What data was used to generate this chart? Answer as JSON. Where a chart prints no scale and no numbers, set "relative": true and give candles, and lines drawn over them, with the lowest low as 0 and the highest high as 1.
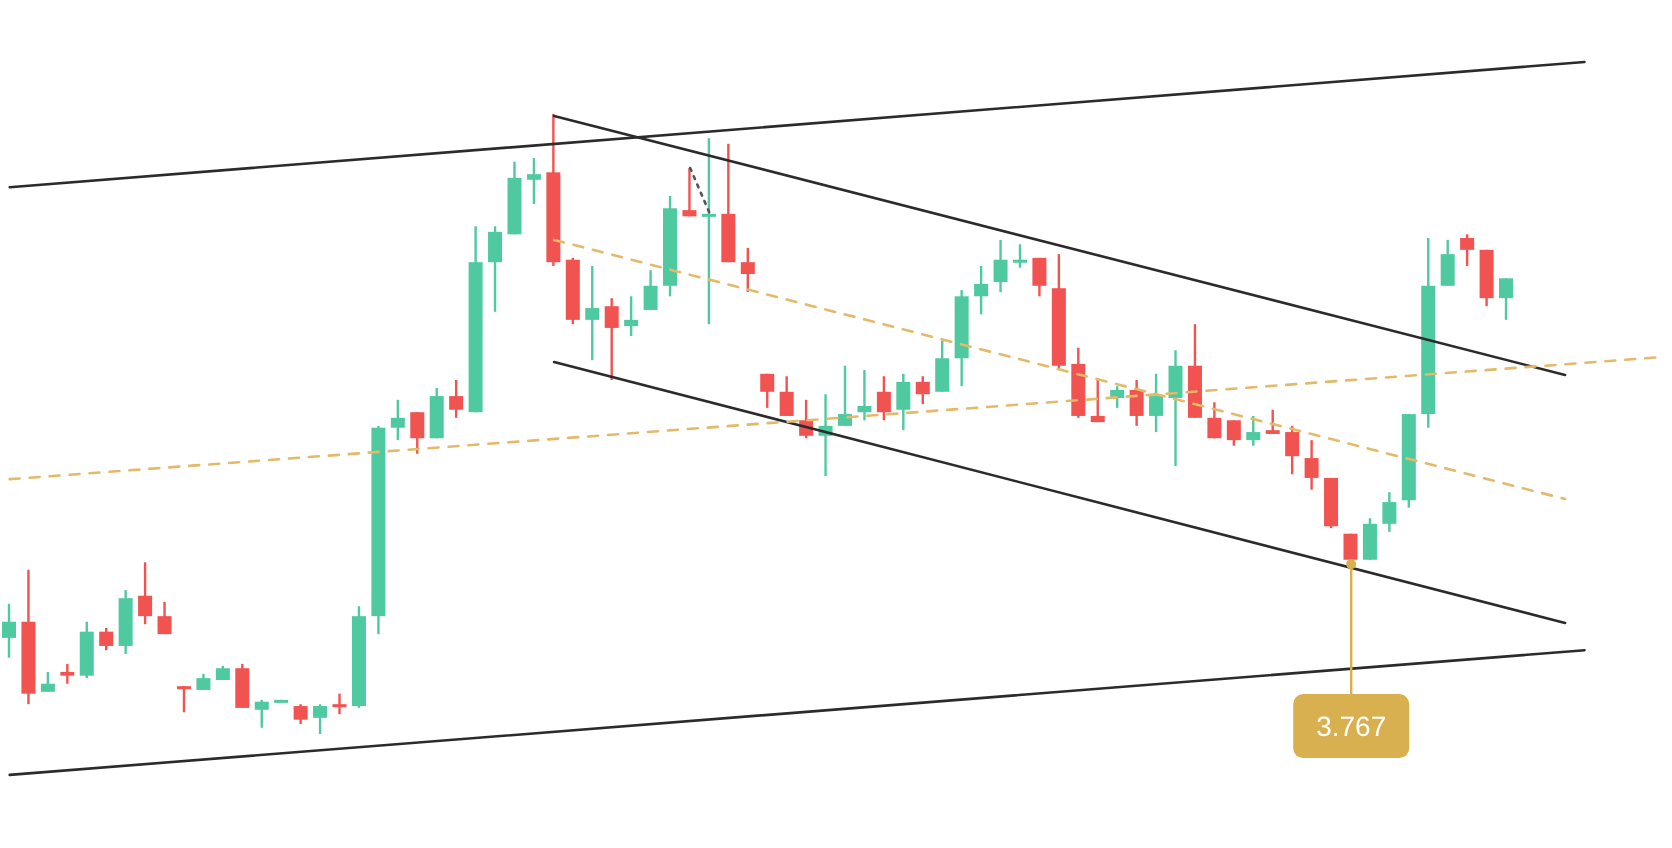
{
  "chart_data": {
    "type": "candlestick",
    "relative": true,
    "grid": false,
    "categories": [
      null,
      null,
      null,
      null,
      null,
      null,
      null,
      null,
      null,
      null,
      null,
      null,
      null,
      null,
      null,
      null,
      null,
      null,
      null,
      null,
      null,
      null,
      null,
      null,
      null,
      null,
      null,
      null,
      null,
      null,
      null,
      null,
      null,
      null,
      null,
      null,
      null,
      null,
      null,
      null,
      null,
      null,
      null,
      null,
      null,
      null,
      null,
      null,
      null,
      null,
      null,
      null,
      null,
      null,
      null,
      null,
      null,
      null,
      null,
      null,
      null,
      null,
      null,
      null,
      null,
      null,
      null,
      null,
      null,
      null,
      null,
      null,
      null,
      null,
      null,
      null,
      null,
      null,
      null,
      null,
      null,
      null,
      null,
      null,
      null,
      null
    ],
    "colors": [
      "#4fc99f",
      "#f05350",
      "#4fc99f",
      "#f05350",
      "#4fc99f",
      "#f05350",
      "#4fc99f",
      "#f05350",
      "#f05350",
      "#f05350",
      "#4fc99f",
      "#4fc99f",
      "#f05350",
      "#4fc99f",
      "#4fc99f",
      "#f05350",
      "#4fc99f",
      "#f05350",
      "#4fc99f",
      "#4fc99f",
      "#4fc99f",
      "#f05350",
      "#4fc99f",
      "#f05350",
      "#4fc99f",
      "#4fc99f",
      "#4fc99f",
      "#4fc99f",
      "#f05350",
      "#f05350",
      "#4fc99f",
      "#f05350",
      "#4fc99f",
      "#4fc99f",
      "#4fc99f",
      "#f05350",
      "#4fc99f",
      "#f05350",
      "#f05350",
      "#f05350",
      "#f05350",
      "#f05350",
      "#4fc99f",
      "#4fc99f",
      "#4fc99f",
      "#f05350",
      "#4fc99f",
      "#f05350",
      "#4fc99f",
      "#4fc99f",
      "#4fc99f",
      "#4fc99f",
      "#4fc99f",
      "#f05350",
      "#f05350",
      "#f05350",
      "#f05350",
      "#4fc99f",
      "#f05350",
      "#4fc99f",
      "#4fc99f",
      "#f05350",
      "#f05350",
      "#f05350",
      "#4fc99f",
      "#f05350",
      "#f05350",
      "#f05350",
      "#f05350",
      "#f05350",
      "#4fc99f",
      "#4fc99f",
      "#4fc99f",
      "#4fc99f",
      "#4fc99f",
      "#f05350",
      "#f05350",
      "#4fc99f",
      null,
      null,
      null,
      null,
      null,
      null,
      null,
      null
    ],
    "ohlc": [
      [
        0.155,
        0.21,
        0.123,
        0.181
      ],
      [
        0.181,
        0.265,
        0.048,
        0.065
      ],
      [
        0.068,
        0.1,
        0.068,
        0.081
      ],
      [
        0.1,
        0.113,
        0.081,
        0.094
      ],
      [
        0.094,
        0.181,
        0.09,
        0.165
      ],
      [
        0.165,
        0.171,
        0.135,
        0.142
      ],
      [
        0.142,
        0.232,
        0.129,
        0.219
      ],
      [
        0.223,
        0.277,
        0.177,
        0.19
      ],
      [
        0.19,
        0.213,
        0.161,
        0.161
      ],
      [
        0.077,
        0.077,
        0.035,
        0.074
      ],
      [
        0.071,
        0.097,
        0.071,
        0.09
      ],
      [
        0.087,
        0.11,
        0.087,
        0.106
      ],
      [
        0.106,
        0.113,
        0.042,
        0.042
      ],
      [
        0.039,
        0.055,
        0.01,
        0.052
      ],
      [
        0.052,
        0.055,
        0.052,
        0.055
      ],
      [
        0.045,
        0.048,
        0.016,
        0.023
      ],
      [
        0.026,
        0.048,
        0,
        0.045
      ],
      [
        0.048,
        0.065,
        0.032,
        0.045
      ],
      [
        0.045,
        0.206,
        0.042,
        0.19
      ],
      [
        0.19,
        0.497,
        0.161,
        0.494
      ],
      [
        0.494,
        0.539,
        0.474,
        0.51
      ],
      [
        0.519,
        0.519,
        0.452,
        0.477
      ],
      [
        0.477,
        0.558,
        0.477,
        0.545
      ],
      [
        0.545,
        0.571,
        0.51,
        0.523
      ],
      [
        0.519,
        0.819,
        0.519,
        0.761
      ],
      [
        0.761,
        0.819,
        0.681,
        0.81
      ],
      [
        0.806,
        0.923,
        0.806,
        0.897
      ],
      [
        0.894,
        0.929,
        0.855,
        0.903
      ],
      [
        0.906,
        1,
        0.755,
        0.761
      ],
      [
        0.765,
        0.768,
        0.661,
        0.668
      ],
      [
        0.668,
        0.755,
        0.603,
        0.687
      ],
      [
        0.69,
        0.703,
        0.571,
        0.655
      ],
      [
        0.658,
        0.706,
        0.642,
        0.668
      ],
      [
        0.684,
        0.748,
        0.684,
        0.723
      ],
      [
        0.723,
        0.868,
        0.706,
        0.848
      ],
      [
        0.845,
        0.913,
        0.835,
        0.835
      ],
      [
        0.835,
        0.961,
        0.661,
        0.839
      ],
      [
        0.839,
        0.952,
        0.761,
        0.761
      ],
      [
        0.761,
        0.784,
        0.713,
        0.742
      ],
      [
        0.581,
        0.581,
        0.526,
        0.552
      ],
      [
        0.552,
        0.577,
        0.513,
        0.513
      ],
      [
        0.506,
        0.539,
        0.477,
        0.481
      ],
      [
        0.481,
        0.548,
        0.416,
        0.497
      ],
      [
        0.497,
        0.594,
        0.497,
        0.516
      ],
      [
        0.519,
        0.587,
        0.506,
        0.529
      ],
      [
        0.552,
        0.577,
        0.506,
        0.519
      ],
      [
        0.523,
        0.581,
        0.49,
        0.568
      ],
      [
        0.568,
        0.577,
        0.532,
        0.548
      ],
      [
        0.552,
        0.635,
        0.552,
        0.606
      ],
      [
        0.606,
        0.716,
        0.561,
        0.706
      ],
      [
        0.706,
        0.755,
        0.677,
        0.726
      ],
      [
        0.729,
        0.797,
        0.713,
        0.765
      ],
      [
        0.761,
        0.79,
        0.752,
        0.765
      ],
      [
        0.768,
        0.768,
        0.706,
        0.723
      ],
      [
        0.719,
        0.774,
        0.587,
        0.594
      ],
      [
        0.597,
        0.623,
        0.51,
        0.513
      ],
      [
        0.513,
        0.574,
        0.503,
        0.503
      ],
      [
        0.542,
        0.561,
        0.526,
        0.555
      ],
      [
        0.555,
        0.571,
        0.497,
        0.513
      ],
      [
        0.513,
        0.581,
        0.487,
        0.545
      ],
      [
        0.542,
        0.619,
        0.432,
        0.594
      ],
      [
        0.594,
        0.661,
        0.51,
        0.51
      ],
      [
        0.51,
        0.535,
        0.477,
        0.477
      ],
      [
        0.506,
        0.506,
        0.465,
        0.474
      ],
      [
        0.474,
        0.513,
        0.465,
        0.487
      ],
      [
        0.49,
        0.523,
        0.484,
        0.484
      ],
      [
        0.487,
        0.497,
        0.419,
        0.448
      ],
      [
        0.445,
        0.474,
        0.394,
        0.413
      ],
      [
        0.413,
        0.413,
        0.332,
        0.335
      ],
      [
        0.323,
        0.323,
        0.274,
        0.281
      ],
      [
        0.281,
        0.348,
        0.281,
        0.339
      ],
      [
        0.339,
        0.39,
        0.326,
        0.374
      ],
      [
        0.377,
        0.516,
        0.365,
        0.516
      ],
      [
        0.516,
        0.8,
        0.494,
        0.723
      ],
      [
        0.723,
        0.797,
        0.723,
        0.774
      ],
      [
        0.8,
        0.806,
        0.755,
        0.781
      ],
      [
        0.781,
        0.781,
        0.69,
        0.703
      ],
      [
        0.703,
        0.735,
        0.668,
        0.735
      ],
      null,
      null,
      null,
      null,
      null,
      null,
      null,
      null
    ],
    "series": [
      {
        "type": "line",
        "color": "#2b2b2b",
        "line_style": "solid",
        "values": [
          0.882,
          null,
          null,
          null,
          null,
          null,
          null,
          null,
          null,
          null,
          null,
          null,
          null,
          null,
          null,
          null,
          null,
          null,
          null,
          null,
          null,
          null,
          null,
          null,
          null,
          null,
          null,
          null,
          null,
          null,
          null,
          null,
          null,
          null,
          null,
          null,
          null,
          null,
          null,
          null,
          null,
          null,
          null,
          null,
          null,
          null,
          null,
          null,
          null,
          null,
          null,
          null,
          null,
          null,
          null,
          null,
          null,
          null,
          null,
          null,
          null,
          null,
          null,
          null,
          null,
          null,
          null,
          null,
          null,
          null,
          null,
          null,
          null,
          null,
          null,
          null,
          null,
          null,
          null,
          null,
          null,
          1.084,
          null,
          null,
          null,
          null
        ]
      },
      {
        "type": "line",
        "color": "#2b2b2b",
        "line_style": "solid",
        "values": [
          -0.066,
          null,
          null,
          null,
          null,
          null,
          null,
          null,
          null,
          null,
          null,
          null,
          null,
          null,
          null,
          null,
          null,
          null,
          null,
          null,
          null,
          null,
          null,
          null,
          null,
          null,
          null,
          null,
          null,
          null,
          null,
          null,
          null,
          null,
          null,
          null,
          null,
          null,
          null,
          null,
          null,
          null,
          null,
          null,
          null,
          null,
          null,
          null,
          null,
          null,
          null,
          null,
          null,
          null,
          null,
          null,
          null,
          null,
          null,
          null,
          null,
          null,
          null,
          null,
          null,
          null,
          null,
          null,
          null,
          null,
          null,
          null,
          null,
          null,
          null,
          null,
          null,
          null,
          null,
          null,
          null,
          0.135,
          null,
          null,
          null,
          null
        ]
      },
      {
        "type": "line",
        "color": "#2b2b2b",
        "line_style": "solid",
        "values": [
          null,
          null,
          null,
          null,
          null,
          null,
          null,
          null,
          null,
          null,
          null,
          null,
          null,
          null,
          null,
          null,
          null,
          null,
          null,
          null,
          null,
          null,
          null,
          null,
          null,
          null,
          null,
          null,
          0.997,
          null,
          null,
          null,
          null,
          null,
          null,
          null,
          null,
          null,
          null,
          null,
          null,
          null,
          null,
          null,
          null,
          null,
          null,
          null,
          null,
          null,
          null,
          null,
          null,
          null,
          null,
          null,
          null,
          null,
          null,
          null,
          null,
          null,
          null,
          null,
          null,
          null,
          null,
          null,
          null,
          null,
          null,
          null,
          null,
          null,
          null,
          null,
          null,
          null,
          null,
          null,
          0.579,
          null,
          null,
          null,
          null,
          null
        ]
      },
      {
        "type": "line",
        "color": "#2b2b2b",
        "line_style": "solid",
        "values": [
          null,
          null,
          null,
          null,
          null,
          null,
          null,
          null,
          null,
          null,
          null,
          null,
          null,
          null,
          null,
          null,
          null,
          null,
          null,
          null,
          null,
          null,
          null,
          null,
          null,
          null,
          null,
          null,
          0.6,
          null,
          null,
          null,
          null,
          null,
          null,
          null,
          null,
          null,
          null,
          null,
          null,
          null,
          null,
          null,
          null,
          null,
          null,
          null,
          null,
          null,
          null,
          null,
          null,
          null,
          null,
          null,
          null,
          null,
          null,
          null,
          null,
          null,
          null,
          null,
          null,
          null,
          null,
          null,
          null,
          null,
          null,
          null,
          null,
          null,
          null,
          null,
          null,
          null,
          null,
          null,
          0.179,
          null,
          null,
          null,
          null,
          null
        ]
      },
      {
        "type": "line",
        "color": "#e3b96a",
        "line_style": "dashed",
        "values": [
          null,
          null,
          null,
          null,
          null,
          null,
          null,
          null,
          null,
          null,
          null,
          null,
          null,
          null,
          null,
          null,
          null,
          null,
          null,
          null,
          null,
          null,
          null,
          null,
          null,
          null,
          null,
          null,
          0.797,
          null,
          null,
          null,
          null,
          null,
          null,
          null,
          null,
          null,
          null,
          null,
          null,
          null,
          null,
          null,
          null,
          null,
          null,
          null,
          null,
          null,
          null,
          null,
          null,
          null,
          null,
          null,
          null,
          null,
          null,
          null,
          null,
          null,
          null,
          null,
          null,
          null,
          null,
          null,
          null,
          null,
          null,
          null,
          null,
          null,
          null,
          null,
          null,
          null,
          null,
          null,
          0.379,
          null,
          null,
          null,
          null,
          null
        ]
      },
      {
        "type": "line",
        "color": "#e3b96a",
        "line_style": "dashed",
        "values": [
          0.411,
          null,
          null,
          null,
          null,
          null,
          null,
          null,
          null,
          null,
          null,
          null,
          null,
          null,
          null,
          null,
          null,
          null,
          null,
          null,
          null,
          null,
          null,
          null,
          null,
          null,
          null,
          null,
          null,
          null,
          null,
          null,
          null,
          null,
          null,
          null,
          null,
          null,
          null,
          null,
          null,
          null,
          null,
          null,
          null,
          null,
          null,
          null,
          null,
          null,
          null,
          null,
          null,
          null,
          null,
          null,
          null,
          null,
          null,
          null,
          null,
          null,
          null,
          null,
          null,
          null,
          null,
          null,
          null,
          null,
          null,
          null,
          null,
          null,
          null,
          null,
          null,
          null,
          null,
          null,
          null,
          null,
          null,
          null,
          null,
          0.608
        ]
      },
      {
        "type": "line",
        "color": "#555555",
        "line_style": "dotted",
        "values": [
          null,
          null,
          null,
          null,
          null,
          null,
          null,
          null,
          null,
          null,
          null,
          null,
          null,
          null,
          null,
          null,
          null,
          null,
          null,
          null,
          null,
          null,
          null,
          null,
          null,
          null,
          null,
          null,
          null,
          null,
          null,
          null,
          null,
          null,
          null,
          0.913,
          0.84,
          null,
          null,
          null,
          null,
          null,
          null,
          null,
          null,
          null,
          null,
          null,
          null,
          null,
          null,
          null,
          null,
          null,
          null,
          null,
          null,
          null,
          null,
          null,
          null,
          null,
          null,
          null,
          null,
          null,
          null,
          null,
          null,
          null,
          null,
          null,
          null,
          null,
          null,
          null,
          null,
          null,
          null,
          null,
          null,
          null,
          null,
          null,
          null,
          null
        ]
      }
    ],
    "annotations": [
      {
        "text": "3.767",
        "y": 0.274
      }
    ]
  }
}
